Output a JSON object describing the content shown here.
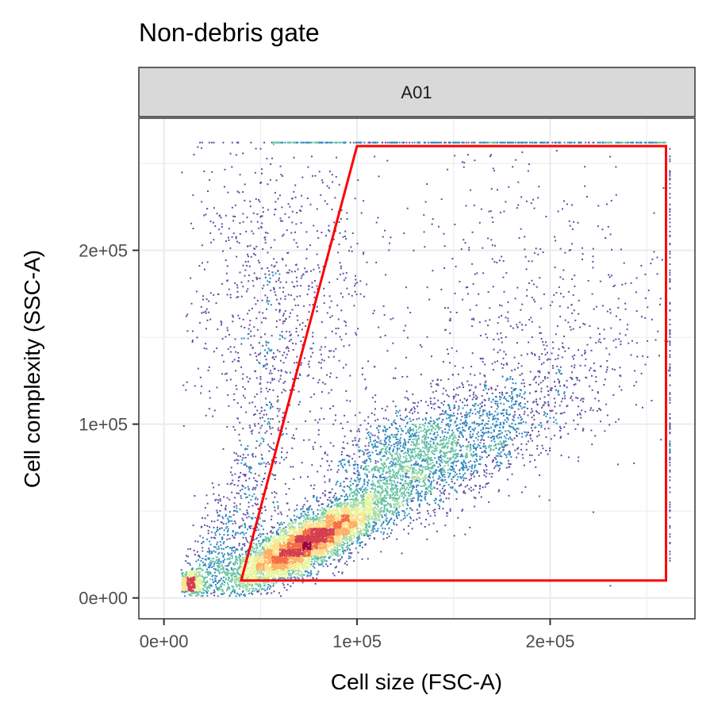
{
  "chart_data": {
    "type": "scatter",
    "title": "Non-debris gate",
    "facet_label": "A01",
    "xlabel": "Cell size (FSC-A)",
    "ylabel": "Cell complexity (SSC-A)",
    "xlim": [
      -13000,
      275000
    ],
    "ylim": [
      -12000,
      276000
    ],
    "x_ticks": [
      0,
      100000,
      200000
    ],
    "x_tick_labels": [
      "0e+00",
      "1e+05",
      "2e+05"
    ],
    "y_ticks": [
      0,
      100000,
      200000
    ],
    "y_tick_labels": [
      "0e+00",
      "1e+05",
      "2e+05"
    ],
    "grid": true,
    "density_colors": [
      "#5e4fa2",
      "#3288bd",
      "#66c2a5",
      "#abdda4",
      "#e6f598",
      "#fee08b",
      "#fdae61",
      "#f46d43",
      "#d53e4f",
      "#9e0142"
    ],
    "point_color": "#5e4fa2",
    "gate_color": "#ff0000",
    "gate_polygon": [
      {
        "x": 40000,
        "y": 10000
      },
      {
        "x": 100000,
        "y": 260000
      },
      {
        "x": 260000,
        "y": 260000
      },
      {
        "x": 260000,
        "y": 10000
      }
    ],
    "populations": [
      {
        "name_hint": "main",
        "cx": 75000,
        "cy": 32000,
        "count": 5200
      },
      {
        "name_hint": "tail",
        "cx": 140000,
        "cy": 90000,
        "count": 2600
      },
      {
        "name_hint": "debris",
        "cx": 14000,
        "cy": 8000,
        "count": 450
      },
      {
        "name_hint": "debris-smear",
        "cx": 30000,
        "cy": 60000,
        "count": 700
      },
      {
        "name_hint": "scatter-high",
        "cx": 60000,
        "cy": 170000,
        "count": 900
      },
      {
        "name_hint": "scatter-right",
        "cx": 190000,
        "cy": 170000,
        "count": 500
      }
    ],
    "saturation_y": 262000
  }
}
